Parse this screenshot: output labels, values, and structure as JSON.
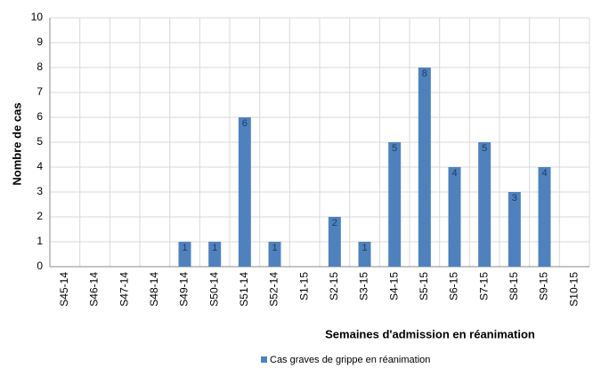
{
  "chart_data": {
    "type": "bar",
    "y_label": "Nombre de cas",
    "x_label": "Semaines d'admission en réanimation",
    "categories": [
      "S45-14",
      "S46-14",
      "S47-14",
      "S48-14",
      "S49-14",
      "S50-14",
      "S51-14",
      "S52-14",
      "S1-15",
      "S2-15",
      "S3-15",
      "S4-15",
      "S5-15",
      "S6-15",
      "S7-15",
      "S8-15",
      "S9-15",
      "S10-15"
    ],
    "series": [
      {
        "name": "Cas graves de grippe en réanimation",
        "color": "#4f81bd",
        "values": [
          0,
          0,
          0,
          0,
          1,
          1,
          6,
          1,
          0,
          2,
          1,
          5,
          8,
          4,
          5,
          3,
          4,
          0
        ]
      }
    ],
    "ylim": [
      0,
      10
    ],
    "yticks": [
      0,
      1,
      2,
      3,
      4,
      5,
      6,
      7,
      8,
      9,
      10
    ],
    "grid": true
  }
}
